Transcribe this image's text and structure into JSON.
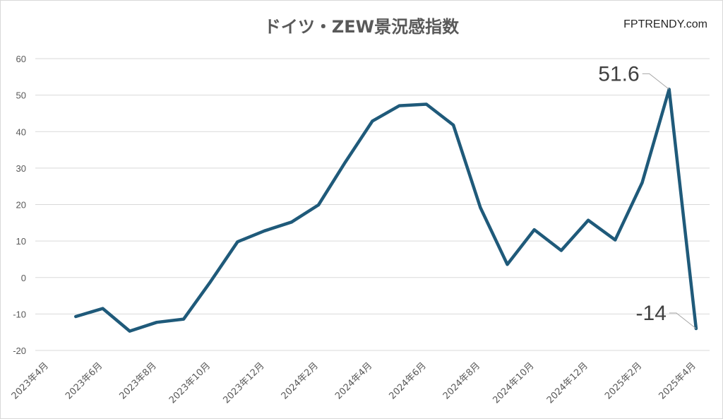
{
  "brand": "FPTRENDY.com",
  "chart_data": {
    "type": "line",
    "title": "ドイツ・ZEW景況感指数",
    "xlabel": "",
    "ylabel": "",
    "ylim": [
      -20,
      60
    ],
    "yticks": [
      "60",
      "50",
      "40",
      "30",
      "20",
      "10",
      "0",
      "-10",
      "-20"
    ],
    "grid": true,
    "categories": [
      "2023年4月",
      "2023年5月",
      "2023年6月",
      "2023年7月",
      "2023年8月",
      "2023年9月",
      "2023年10月",
      "2023年11月",
      "2023年12月",
      "2024年1月",
      "2024年2月",
      "2024年3月",
      "2024年4月",
      "2024年5月",
      "2024年6月",
      "2024年7月",
      "2024年8月",
      "2024年9月",
      "2024年10月",
      "2024年11月",
      "2024年12月",
      "2025年1月",
      "2025年2月",
      "2025年3月",
      "2025年4月"
    ],
    "xtick_labels": [
      "2023年4月",
      "2023年6月",
      "2023年8月",
      "2023年10月",
      "2023年12月",
      "2024年2月",
      "2024年4月",
      "2024年6月",
      "2024年8月",
      "2024年10月",
      "2024年12月",
      "2025年2月",
      "2025年4月"
    ],
    "series": [
      {
        "color": "#1f5a7a",
        "values": [
          null,
          -10.7,
          -8.5,
          -14.7,
          -12.3,
          -11.4,
          -1.1,
          9.8,
          12.8,
          15.2,
          19.9,
          31.7,
          42.9,
          47.1,
          47.5,
          41.8,
          19.2,
          3.6,
          13.1,
          7.4,
          15.7,
          10.3,
          26.0,
          51.6,
          -14.0
        ]
      }
    ],
    "annotations": [
      {
        "label": "51.6",
        "category": "2025年3月",
        "value": 51.6
      },
      {
        "label": "-14",
        "category": "2025年4月",
        "value": -14.0
      }
    ]
  }
}
